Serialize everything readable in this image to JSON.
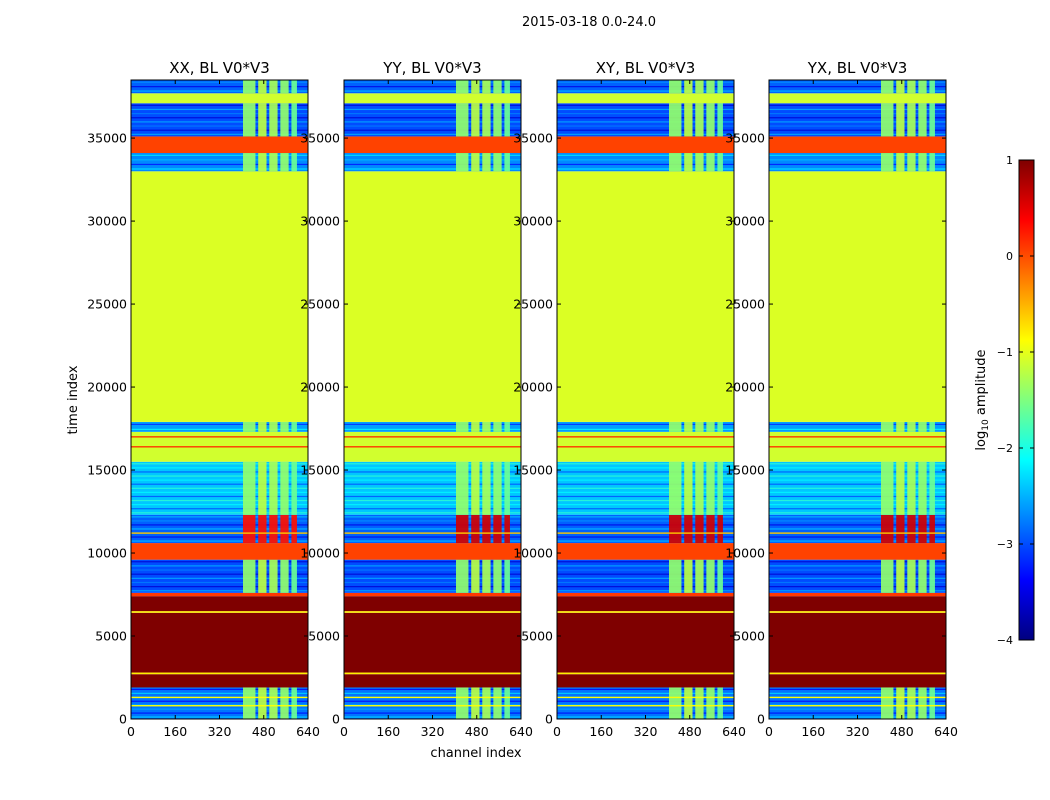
{
  "chart_data": {
    "type": "heatmap",
    "suptitle": "2015-03-18 0.0-24.0",
    "xlabel": "channel index",
    "ylabel": "time index",
    "xlim": [
      0,
      640
    ],
    "ylim": [
      0,
      38500
    ],
    "xticks": [
      0,
      160,
      320,
      480,
      640
    ],
    "yticks": [
      0,
      5000,
      10000,
      15000,
      20000,
      25000,
      30000,
      35000
    ],
    "colorbar": {
      "label": "log10 amplitude",
      "label_main": "log",
      "label_sub": "10",
      "label_tail": " amplitude",
      "range": [
        -4,
        1
      ],
      "ticks": [
        1,
        0,
        -1,
        -2,
        -3,
        -4
      ],
      "tick_labels": [
        "1",
        "0",
        "−1",
        "−2",
        "−3",
        "−4"
      ],
      "colormap": [
        "#00007f",
        "#0000ff",
        "#007fff",
        "#00ffff",
        "#7fff7f",
        "#ffff00",
        "#ff7f00",
        "#ff0000",
        "#7f0000"
      ]
    },
    "panels": [
      {
        "title": "XX, BL V0*V3"
      },
      {
        "title": "YY, BL V0*V3"
      },
      {
        "title": "XY, BL V0*V3"
      },
      {
        "title": "YX, BL V0*V3"
      }
    ],
    "time_bands": [
      {
        "t0": 0,
        "t1": 1900,
        "value": -2.8,
        "columns": true
      },
      {
        "t0": 1900,
        "t1": 2700,
        "value": 1.0
      },
      {
        "t0": 2700,
        "t1": 2800,
        "value": -0.8
      },
      {
        "t0": 2800,
        "t1": 6400,
        "value": 1.0
      },
      {
        "t0": 6400,
        "t1": 6500,
        "value": -0.8
      },
      {
        "t0": 6500,
        "t1": 7400,
        "value": 1.0
      },
      {
        "t0": 7400,
        "t1": 7600,
        "value": 0.1
      },
      {
        "t0": 7600,
        "t1": 9600,
        "value": -3.0,
        "columns": true
      },
      {
        "t0": 9600,
        "t1": 10600,
        "value": 0.05
      },
      {
        "t0": 10600,
        "t1": 12300,
        "value": -2.9,
        "columns": true
      },
      {
        "t0": 12300,
        "t1": 15500,
        "value": -2.4,
        "columns": true
      },
      {
        "t0": 15500,
        "t1": 17300,
        "value": -1.1
      },
      {
        "t0": 17300,
        "t1": 17900,
        "value": -2.6,
        "columns": true
      },
      {
        "t0": 17900,
        "t1": 33000,
        "value": -1.05
      },
      {
        "t0": 33000,
        "t1": 34100,
        "value": -2.7,
        "columns": true
      },
      {
        "t0": 34100,
        "t1": 35100,
        "value": 0.05
      },
      {
        "t0": 35100,
        "t1": 37100,
        "value": -3.0,
        "columns": true
      },
      {
        "t0": 37100,
        "t1": 37700,
        "value": -1.1
      },
      {
        "t0": 37700,
        "t1": 38500,
        "value": -2.9,
        "columns": true
      }
    ],
    "thin_lines": [
      {
        "t": 800,
        "value": -0.9
      },
      {
        "t": 1300,
        "value": -0.9
      },
      {
        "t": 11200,
        "value": -0.6
      },
      {
        "t": 16400,
        "value": 0.1
      },
      {
        "t": 17000,
        "value": 0.1
      }
    ],
    "rfi_columns": [
      {
        "c0": 405,
        "c1": 450,
        "value": -1.4
      },
      {
        "c0": 460,
        "c1": 490,
        "value": -1.2
      },
      {
        "c0": 500,
        "c1": 530,
        "value": -1.3
      },
      {
        "c0": 540,
        "c1": 570,
        "value": -1.4
      },
      {
        "c0": 580,
        "c1": 600,
        "value": -1.6
      }
    ]
  }
}
